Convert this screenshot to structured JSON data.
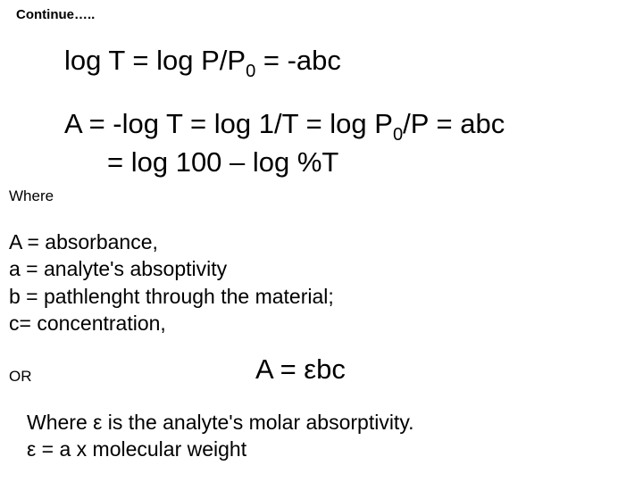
{
  "colors": {
    "background": "#ffffff",
    "text": "#000000"
  },
  "typography": {
    "font_family": "Comic Sans MS",
    "heading_size_pt": 15,
    "equation_size_pt": 31,
    "label_size_pt": 17,
    "body_size_pt": 23
  },
  "continue": "Continue…..",
  "eq1": {
    "pre": "log T = log P/P",
    "sub": "0",
    "post": " = -abc"
  },
  "eq2": {
    "line1_pre": "A = -log T = log 1/T = log P",
    "line1_sub": "0",
    "line1_post": "/P = abc",
    "line2": "= log 100 – log %T"
  },
  "where_label": "Where",
  "defs": {
    "l1": "A = absorbance,",
    "l2": " a = analyte's absoptivity",
    "l3": " b = pathlenght through the material;",
    "l4": "c= concentration,"
  },
  "or_label": "OR",
  "eq3": "A = εbc",
  "closing": {
    "l1": "Where ε is the analyte's molar absorptivity.",
    "l2": "ε = a x molecular weight"
  }
}
